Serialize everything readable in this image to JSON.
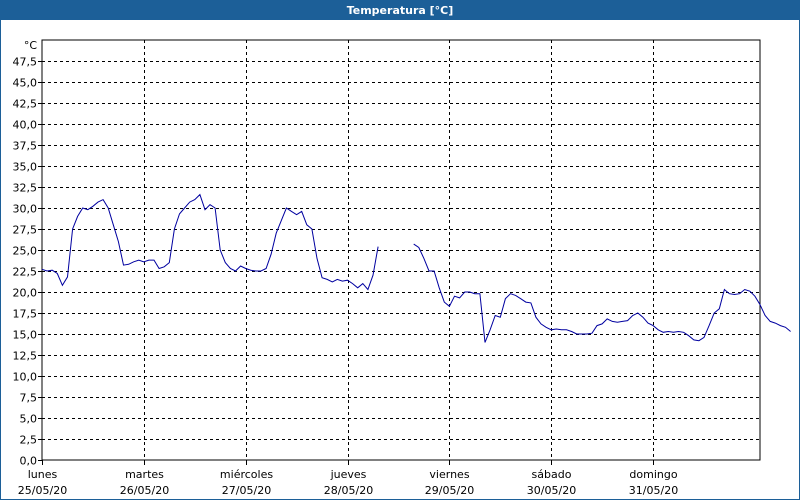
{
  "window": {
    "title": "Temperatura [°C]"
  },
  "chart_data": {
    "type": "line",
    "title": "Temperatura [°C]",
    "ylabel": "°C",
    "xlabel": "",
    "ylim": [
      0,
      50
    ],
    "yticks": [
      "0,0",
      "2,5",
      "5,0",
      "7,5",
      "10,0",
      "12,5",
      "15,0",
      "17,5",
      "20,0",
      "22,5",
      "25,0",
      "27,5",
      "30,0",
      "32,5",
      "35,0",
      "37,5",
      "40,0",
      "42,5",
      "45,0",
      "47,5"
    ],
    "grid": true,
    "xlim": [
      0,
      7
    ],
    "days": [
      {
        "name": "lunes",
        "date": "25/05/20"
      },
      {
        "name": "martes",
        "date": "26/05/20"
      },
      {
        "name": "miércoles",
        "date": "27/05/20"
      },
      {
        "name": "jueves",
        "date": "28/05/20"
      },
      {
        "name": "viernes",
        "date": "29/05/20"
      },
      {
        "name": "sábado",
        "date": "30/05/20"
      },
      {
        "name": "domingo",
        "date": "31/05/20"
      }
    ],
    "series": [
      {
        "color": "#0000a0",
        "segments": [
          [
            [
              0.0,
              22.7
            ],
            [
              0.05,
              22.5
            ],
            [
              0.1,
              22.6
            ],
            [
              0.15,
              22.2
            ],
            [
              0.2,
              20.8
            ],
            [
              0.25,
              21.8
            ],
            [
              0.3,
              27.5
            ],
            [
              0.35,
              29.0
            ],
            [
              0.4,
              30.0
            ],
            [
              0.45,
              29.8
            ],
            [
              0.5,
              30.2
            ],
            [
              0.55,
              30.7
            ],
            [
              0.6,
              31.0
            ],
            [
              0.65,
              30.0
            ],
            [
              0.7,
              28.0
            ],
            [
              0.75,
              26.0
            ],
            [
              0.8,
              23.2
            ],
            [
              0.85,
              23.3
            ],
            [
              0.9,
              23.6
            ],
            [
              0.95,
              23.8
            ],
            [
              1.0,
              23.6
            ],
            [
              1.05,
              23.8
            ],
            [
              1.1,
              23.8
            ],
            [
              1.15,
              22.8
            ],
            [
              1.2,
              23.0
            ],
            [
              1.25,
              23.5
            ],
            [
              1.3,
              27.5
            ],
            [
              1.35,
              29.3
            ],
            [
              1.4,
              30.0
            ],
            [
              1.45,
              30.7
            ],
            [
              1.5,
              31.0
            ],
            [
              1.55,
              31.6
            ],
            [
              1.6,
              29.8
            ],
            [
              1.65,
              30.4
            ],
            [
              1.7,
              30.0
            ],
            [
              1.75,
              25.0
            ],
            [
              1.8,
              23.5
            ],
            [
              1.85,
              22.8
            ],
            [
              1.9,
              22.5
            ],
            [
              1.95,
              23.1
            ],
            [
              2.0,
              22.8
            ],
            [
              2.05,
              22.6
            ],
            [
              2.1,
              22.5
            ],
            [
              2.15,
              22.5
            ],
            [
              2.2,
              22.8
            ],
            [
              2.25,
              24.5
            ],
            [
              2.3,
              27.0
            ],
            [
              2.35,
              28.5
            ],
            [
              2.4,
              30.0
            ],
            [
              2.45,
              29.6
            ],
            [
              2.5,
              29.2
            ],
            [
              2.55,
              29.6
            ],
            [
              2.6,
              28.0
            ],
            [
              2.65,
              27.5
            ],
            [
              2.7,
              24.0
            ],
            [
              2.75,
              21.7
            ],
            [
              2.8,
              21.5
            ],
            [
              2.85,
              21.2
            ],
            [
              2.9,
              21.5
            ],
            [
              2.95,
              21.3
            ],
            [
              3.0,
              21.4
            ],
            [
              3.05,
              21.0
            ],
            [
              3.1,
              20.5
            ],
            [
              3.15,
              21.0
            ],
            [
              3.2,
              20.3
            ],
            [
              3.25,
              22.0
            ],
            [
              3.3,
              25.4
            ]
          ],
          [
            [
              3.65,
              25.7
            ],
            [
              3.7,
              25.3
            ],
            [
              3.75,
              24.0
            ],
            [
              3.8,
              22.5
            ],
            [
              3.85,
              22.5
            ],
            [
              3.9,
              20.5
            ],
            [
              3.95,
              18.8
            ],
            [
              4.0,
              18.3
            ],
            [
              4.05,
              19.5
            ],
            [
              4.1,
              19.3
            ],
            [
              4.15,
              20.0
            ],
            [
              4.2,
              20.0
            ],
            [
              4.25,
              19.8
            ],
            [
              4.3,
              19.8
            ],
            [
              4.35,
              14.0
            ],
            [
              4.4,
              15.5
            ],
            [
              4.45,
              17.2
            ],
            [
              4.5,
              17.0
            ],
            [
              4.55,
              19.2
            ],
            [
              4.6,
              19.8
            ],
            [
              4.65,
              19.6
            ],
            [
              4.7,
              19.2
            ],
            [
              4.75,
              18.8
            ],
            [
              4.8,
              18.7
            ],
            [
              4.85,
              17.0
            ],
            [
              4.9,
              16.2
            ],
            [
              4.95,
              15.8
            ],
            [
              5.0,
              15.5
            ],
            [
              5.05,
              15.6
            ],
            [
              5.1,
              15.5
            ],
            [
              5.15,
              15.5
            ],
            [
              5.2,
              15.3
            ],
            [
              5.25,
              15.0
            ],
            [
              5.3,
              15.0
            ],
            [
              5.35,
              15.0
            ],
            [
              5.4,
              15.1
            ],
            [
              5.45,
              16.0
            ],
            [
              5.5,
              16.2
            ],
            [
              5.55,
              16.8
            ],
            [
              5.6,
              16.5
            ],
            [
              5.65,
              16.4
            ],
            [
              5.7,
              16.5
            ],
            [
              5.75,
              16.6
            ],
            [
              5.8,
              17.2
            ],
            [
              5.85,
              17.5
            ],
            [
              5.9,
              17.0
            ],
            [
              5.95,
              16.3
            ],
            [
              6.0,
              16.0
            ],
            [
              6.05,
              15.5
            ],
            [
              6.1,
              15.2
            ],
            [
              6.15,
              15.3
            ],
            [
              6.2,
              15.2
            ],
            [
              6.25,
              15.3
            ],
            [
              6.3,
              15.2
            ],
            [
              6.35,
              14.8
            ],
            [
              6.4,
              14.3
            ],
            [
              6.45,
              14.2
            ],
            [
              6.5,
              14.6
            ],
            [
              6.55,
              16.0
            ],
            [
              6.6,
              17.5
            ],
            [
              6.65,
              18.0
            ],
            [
              6.7,
              20.3
            ],
            [
              6.75,
              19.8
            ],
            [
              6.8,
              19.7
            ],
            [
              6.85,
              19.8
            ],
            [
              6.9,
              20.3
            ],
            [
              6.95,
              20.1
            ],
            [
              7.0,
              19.5
            ],
            [
              7.05,
              18.5
            ],
            [
              7.1,
              17.2
            ],
            [
              7.15,
              16.5
            ],
            [
              7.2,
              16.3
            ],
            [
              7.25,
              16.0
            ],
            [
              7.3,
              15.8
            ],
            [
              7.35,
              15.3
            ]
          ]
        ]
      }
    ]
  }
}
